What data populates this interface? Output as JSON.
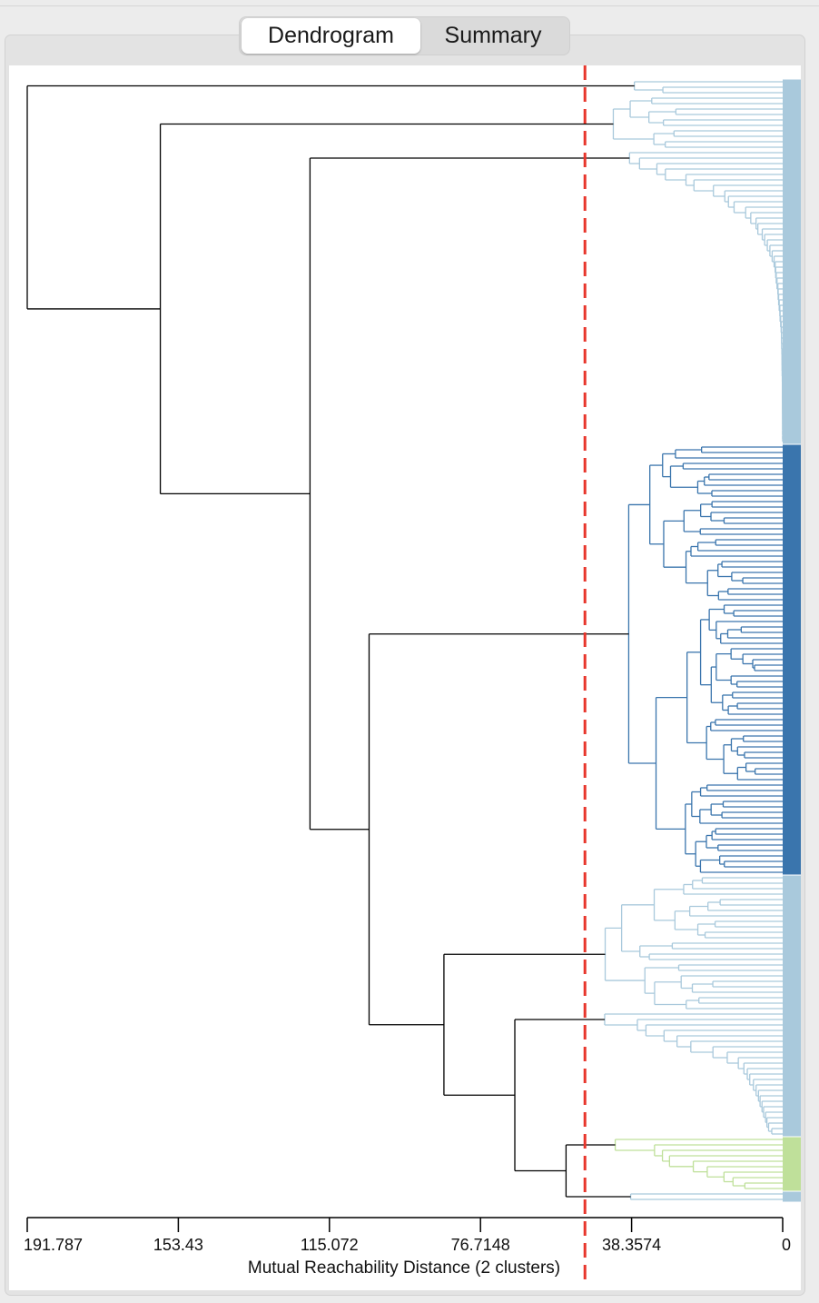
{
  "tabs": [
    {
      "label": "Dendrogram",
      "active": true
    },
    {
      "label": "Summary",
      "active": false
    }
  ],
  "chart_data": {
    "type": "dendrogram",
    "xlabel": "Mutual Reachability Distance (2 clusters)",
    "x_ticks": [
      "191.787",
      "153.43",
      "115.072",
      "76.7148",
      "38.3574",
      "0"
    ],
    "xlim": [
      191.787,
      0
    ],
    "cut_distance": 50.2,
    "clusters": 2,
    "leaf_count": 206,
    "colors": {
      "noise": "#a9c9dc",
      "cluster_1": "#3a75ad",
      "cluster_2": "#bfe09a",
      "merge": "#000000",
      "cut_line": "#e8362c"
    },
    "cluster_bands": [
      {
        "name": "noise",
        "from_leaf": 0,
        "to_leaf": 66
      },
      {
        "name": "cluster_1",
        "from_leaf": 67,
        "to_leaf": 145
      },
      {
        "name": "noise",
        "from_leaf": 146,
        "to_leaf": 193
      },
      {
        "name": "cluster_2",
        "from_leaf": 194,
        "to_leaf": 203
      },
      {
        "name": "noise",
        "from_leaf": 204,
        "to_leaf": 205
      }
    ]
  }
}
